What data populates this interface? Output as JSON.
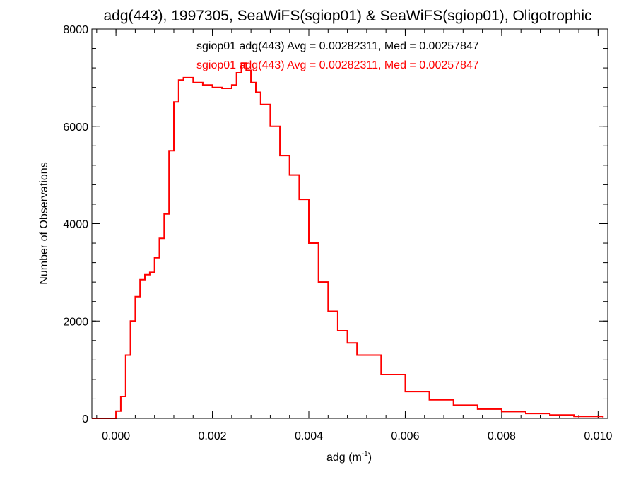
{
  "chart_data": {
    "type": "line",
    "title": "adg(443), 1997305, SeaWiFS(sgiop01) & SeaWiFS(sgiop01), Oligotrophic",
    "xlabel": "adg (m",
    "xlabel_sup": "-1",
    "xlabel_close": ")",
    "ylabel": "Number of Observations",
    "xlim": [
      -0.0005,
      0.0102
    ],
    "ylim": [
      0,
      8000
    ],
    "xticks": [
      0.0,
      0.002,
      0.004,
      0.006,
      0.008,
      0.01
    ],
    "xtick_labels": [
      "0.000",
      "0.002",
      "0.004",
      "0.006",
      "0.008",
      "0.010"
    ],
    "yticks": [
      0,
      2000,
      4000,
      6000,
      8000
    ],
    "ytick_labels": [
      "0",
      "2000",
      "4000",
      "6000",
      "8000"
    ],
    "grid": false,
    "annotations": [
      {
        "text": "sgiop01 adg(443) Avg = 0.00282311, Med = 0.00257847",
        "color": "#000000"
      },
      {
        "text": "sgiop01 adg(443) Avg = 0.00282311, Med = 0.00257847",
        "color": "#ff0000"
      }
    ],
    "series": [
      {
        "color": "#000000",
        "x": [
          -0.0005,
          -0.0001,
          0.0,
          0.0001,
          0.0002,
          0.0003,
          0.0004,
          0.0005,
          0.0006,
          0.0007,
          0.0008,
          0.0009,
          0.001,
          0.0011,
          0.0012,
          0.0013,
          0.0014,
          0.0016,
          0.0018,
          0.002,
          0.0022,
          0.0024,
          0.0025,
          0.0026,
          0.0027,
          0.0028,
          0.0029,
          0.003,
          0.0032,
          0.0034,
          0.0036,
          0.0038,
          0.004,
          0.0042,
          0.0044,
          0.0046,
          0.0048,
          0.005,
          0.0055,
          0.006,
          0.0065,
          0.007,
          0.0075,
          0.008,
          0.0085,
          0.009,
          0.0095,
          0.0101
        ],
        "y": [
          0,
          0,
          150,
          450,
          1300,
          2000,
          2500,
          2850,
          2950,
          3000,
          3300,
          3700,
          4200,
          5500,
          6500,
          6950,
          7000,
          6900,
          6850,
          6800,
          6780,
          6850,
          7100,
          7300,
          7150,
          6900,
          6700,
          6450,
          6000,
          5400,
          5000,
          4500,
          3600,
          2800,
          2200,
          1800,
          1550,
          1300,
          900,
          550,
          380,
          270,
          190,
          140,
          100,
          70,
          40,
          20
        ]
      },
      {
        "color": "#ff0000",
        "x": [
          -0.0005,
          -0.0001,
          0.0,
          0.0001,
          0.0002,
          0.0003,
          0.0004,
          0.0005,
          0.0006,
          0.0007,
          0.0008,
          0.0009,
          0.001,
          0.0011,
          0.0012,
          0.0013,
          0.0014,
          0.0016,
          0.0018,
          0.002,
          0.0022,
          0.0024,
          0.0025,
          0.0026,
          0.0027,
          0.0028,
          0.0029,
          0.003,
          0.0032,
          0.0034,
          0.0036,
          0.0038,
          0.004,
          0.0042,
          0.0044,
          0.0046,
          0.0048,
          0.005,
          0.0055,
          0.006,
          0.0065,
          0.007,
          0.0075,
          0.008,
          0.0085,
          0.009,
          0.0095,
          0.0101
        ],
        "y": [
          0,
          0,
          150,
          450,
          1300,
          2000,
          2500,
          2850,
          2950,
          3000,
          3300,
          3700,
          4200,
          5500,
          6500,
          6950,
          7000,
          6900,
          6850,
          6800,
          6780,
          6850,
          7100,
          7300,
          7150,
          6900,
          6700,
          6450,
          6000,
          5400,
          5000,
          4500,
          3600,
          2800,
          2200,
          1800,
          1550,
          1300,
          900,
          550,
          380,
          270,
          190,
          140,
          100,
          70,
          40,
          20
        ]
      }
    ]
  }
}
